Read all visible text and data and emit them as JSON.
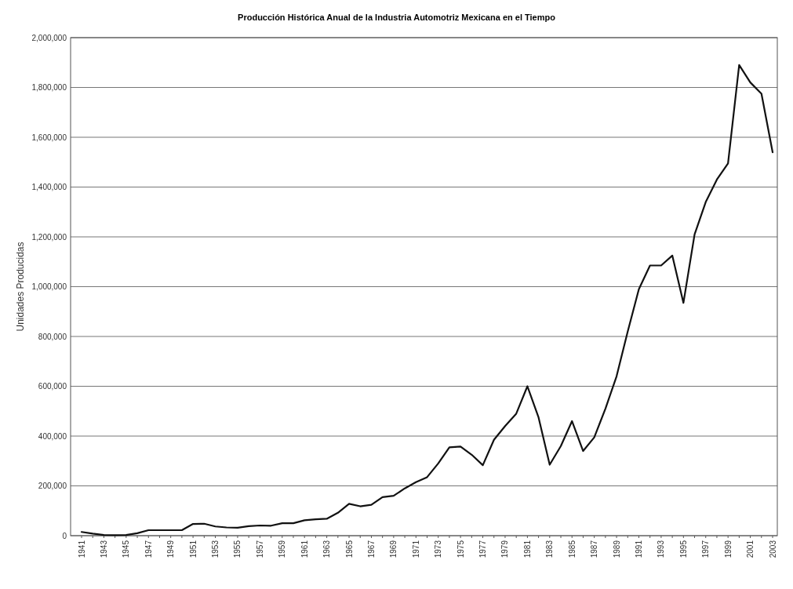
{
  "chart_data": {
    "type": "line",
    "title": "Producción Histórica Anual de la Industria Automotriz Mexicana en el Tiempo",
    "ylabel": "Unidades Producidas",
    "categories": [
      "1941",
      null,
      "1943",
      null,
      "1945",
      null,
      "1947",
      null,
      "1949",
      null,
      "1951",
      null,
      "1953",
      null,
      "1955",
      null,
      "1957",
      null,
      "1959",
      null,
      "1961",
      null,
      "1963",
      null,
      "1965",
      null,
      "1967",
      null,
      "1969",
      null,
      "1971",
      null,
      "1973",
      null,
      "1975",
      null,
      "1977",
      null,
      "1979",
      null,
      "1981",
      null,
      "1983",
      null,
      "1985",
      null,
      "1987",
      null,
      "1989",
      null,
      "1991",
      null,
      "1993",
      null,
      "1995",
      null,
      "1997",
      null,
      "1999",
      null,
      "2001",
      null,
      "2003"
    ],
    "series": [
      {
        "color": "#111111",
        "values": [
          15000,
          8000,
          3000,
          2000,
          3000,
          10000,
          22000,
          22000,
          22000,
          22000,
          47000,
          48000,
          37000,
          33000,
          32000,
          38000,
          41000,
          40000,
          50000,
          50000,
          62000,
          66000,
          68000,
          92000,
          128000,
          118000,
          124000,
          155000,
          160000,
          190000,
          215000,
          235000,
          290000,
          355000,
          358000,
          325000,
          283000,
          385000,
          440000,
          490000,
          600000,
          475000,
          285000,
          360000,
          460000,
          340000,
          395000,
          510000,
          640000,
          820000,
          990000,
          1085000,
          1085000,
          1125000,
          935000,
          1210000,
          1340000,
          1430000,
          1495000,
          1890000,
          1820000,
          1775000,
          1540000
        ]
      }
    ],
    "ylim": [
      0,
      2000000
    ],
    "yticks": [
      {
        "value": 0,
        "label": "0"
      },
      {
        "value": 200000,
        "label": "200,000"
      },
      {
        "value": 400000,
        "label": "400,000"
      },
      {
        "value": 600000,
        "label": "600,000"
      },
      {
        "value": 800000,
        "label": "800,000"
      },
      {
        "value": 1000000,
        "label": "1,000,000"
      },
      {
        "value": 1200000,
        "label": "1,200,000"
      },
      {
        "value": 1400000,
        "label": "1,400,000"
      },
      {
        "value": 1600000,
        "label": "1,600,000"
      },
      {
        "value": 1800000,
        "label": "1,800,000"
      },
      {
        "value": 2000000,
        "label": "2,000,000"
      }
    ],
    "grid": "y",
    "marker": "none",
    "line_style": "solid"
  }
}
